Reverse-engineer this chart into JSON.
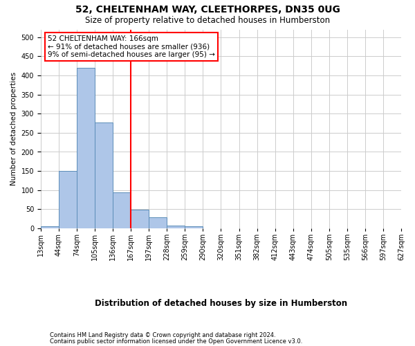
{
  "title": "52, CHELTENHAM WAY, CLEETHORPES, DN35 0UG",
  "subtitle": "Size of property relative to detached houses in Humberston",
  "xlabel": "Distribution of detached houses by size in Humberston",
  "ylabel": "Number of detached properties",
  "footer_line1": "Contains HM Land Registry data © Crown copyright and database right 2024.",
  "footer_line2": "Contains public sector information licensed under the Open Government Licence v3.0.",
  "bin_labels": [
    "13sqm",
    "44sqm",
    "74sqm",
    "105sqm",
    "136sqm",
    "167sqm",
    "197sqm",
    "228sqm",
    "259sqm",
    "290sqm",
    "320sqm",
    "351sqm",
    "382sqm",
    "412sqm",
    "443sqm",
    "474sqm",
    "505sqm",
    "535sqm",
    "566sqm",
    "597sqm",
    "627sqm"
  ],
  "bar_values": [
    5,
    150,
    420,
    277,
    95,
    49,
    29,
    8,
    5,
    0,
    0,
    0,
    0,
    0,
    0,
    0,
    0,
    0,
    0,
    0
  ],
  "bar_color": "#aec6e8",
  "bar_edge_color": "#5b8db8",
  "annotation_text": "52 CHELTENHAM WAY: 166sqm\n← 91% of detached houses are smaller (936)\n9% of semi-detached houses are larger (95) →",
  "annotation_box_color": "white",
  "annotation_box_edge_color": "red",
  "vline_x": 5,
  "vline_color": "red",
  "ylim": [
    0,
    520
  ],
  "yticks": [
    0,
    50,
    100,
    150,
    200,
    250,
    300,
    350,
    400,
    450,
    500
  ],
  "background_color": "white",
  "grid_color": "#cccccc",
  "title_fontsize": 10,
  "subtitle_fontsize": 8.5,
  "ylabel_fontsize": 7.5,
  "xlabel_fontsize": 8.5,
  "tick_fontsize": 7,
  "annot_fontsize": 7.5,
  "footer_fontsize": 6
}
